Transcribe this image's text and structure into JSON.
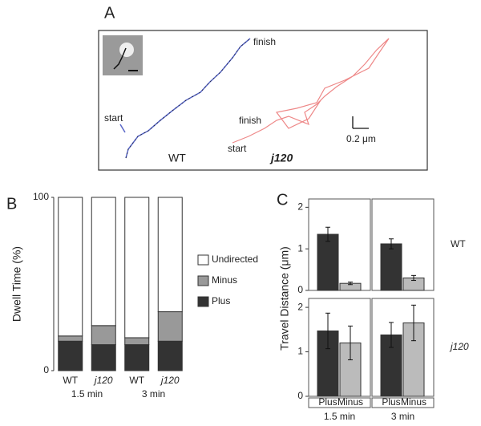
{
  "panel_a": {
    "label": "A",
    "scale_label": "0.2 μm",
    "wt": {
      "name": "WT",
      "start": "start",
      "finish": "finish"
    },
    "j120": {
      "name": "j120",
      "start": "start",
      "finish": "finish"
    }
  },
  "chart_data": [
    {
      "type": "stacked_bar",
      "panel_label": "B",
      "y_label": "Dwell Time (%)",
      "categories": [
        "WT",
        "j120",
        "WT",
        "j120"
      ],
      "groups": [
        "1.5 min",
        "3 min"
      ],
      "ylim": [
        0,
        100
      ],
      "yticks": [
        0,
        100
      ],
      "series": [
        {
          "name": "Plus",
          "color": "#333333",
          "values": [
            17,
            15,
            15,
            17
          ]
        },
        {
          "name": "Minus",
          "color": "#999999",
          "values": [
            3,
            11,
            4,
            17
          ]
        },
        {
          "name": "Undirected",
          "color": "#ffffff",
          "values": [
            80,
            74,
            81,
            66
          ]
        }
      ]
    },
    {
      "type": "faceted_bar",
      "panel_label": "C",
      "y_label": "Travel Distance (μm)",
      "rows": [
        "WT",
        "j120"
      ],
      "columns": [
        "1.5 min",
        "3 min"
      ],
      "categories": [
        "Plus",
        "Minus"
      ],
      "colors": [
        "#333333",
        "#bbbbbb"
      ],
      "ylim": [
        0,
        2.2
      ],
      "yticks": [
        0,
        1,
        2
      ],
      "panels": [
        {
          "values": [
            1.35,
            0.17
          ],
          "errors": [
            0.17,
            0.03
          ]
        },
        {
          "values": [
            1.12,
            0.3
          ],
          "errors": [
            0.12,
            0.06
          ]
        },
        {
          "values": [
            1.47,
            1.2
          ],
          "errors": [
            0.4,
            0.38
          ]
        },
        {
          "values": [
            1.38,
            1.65
          ],
          "errors": [
            0.28,
            0.4
          ]
        }
      ]
    }
  ]
}
